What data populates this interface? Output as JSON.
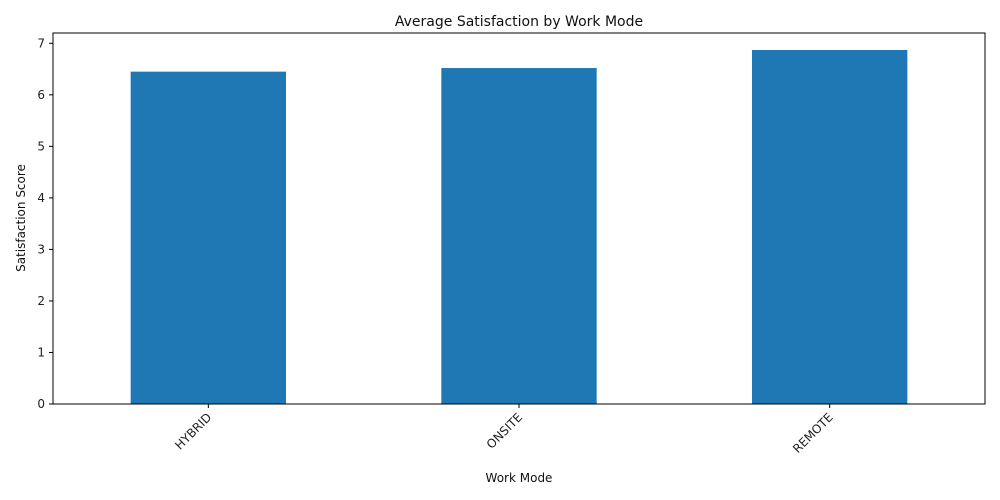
{
  "chart_data": {
    "type": "bar",
    "title": "Average Satisfaction by Work Mode",
    "xlabel": "Work Mode",
    "ylabel": "Satisfaction Score",
    "categories": [
      "HYBRID",
      "ONSITE",
      "REMOTE"
    ],
    "values": [
      6.45,
      6.52,
      6.87
    ],
    "ylim": [
      0,
      7.2
    ],
    "yticks": [
      0,
      1,
      2,
      3,
      4,
      5,
      6,
      7
    ],
    "grid": false,
    "bar_color": "#1f77b4",
    "xtick_rotation": 45
  }
}
